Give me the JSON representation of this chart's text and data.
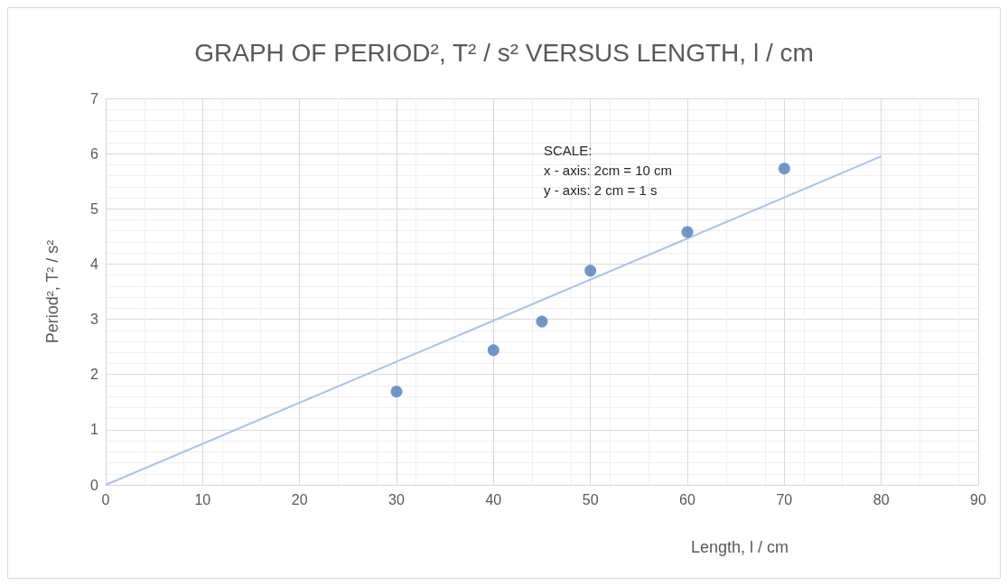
{
  "chart_data": {
    "type": "scatter",
    "title": "GRAPH OF PERIOD², T² / s² VERSUS LENGTH, l / cm",
    "xlabel": "Length, l / cm",
    "ylabel": "Period², T² / s²",
    "annotations": [
      "SCALE:\nx - axis: 2cm = 10 cm\ny - axis: 2 cm = 1 s"
    ],
    "series": [
      {
        "color": "#4a7ebb",
        "x": [
          30,
          40,
          45,
          50,
          60,
          70
        ],
        "values": [
          1.69,
          2.44,
          2.96,
          3.88,
          4.58,
          5.73
        ],
        "marker": "circle"
      },
      {
        "type": "line",
        "color": "#a9c3e3",
        "x": [
          0,
          80
        ],
        "values": [
          0,
          5.95
        ],
        "marker": "none",
        "line_style": "solid"
      }
    ],
    "xlim": [
      0,
      90
    ],
    "xticks": [
      0,
      10,
      20,
      30,
      40,
      50,
      60,
      70,
      80,
      90
    ],
    "ylim": [
      0,
      7
    ],
    "yticks": [
      0,
      1,
      2,
      3,
      4,
      5,
      6,
      7
    ],
    "grid": true
  }
}
